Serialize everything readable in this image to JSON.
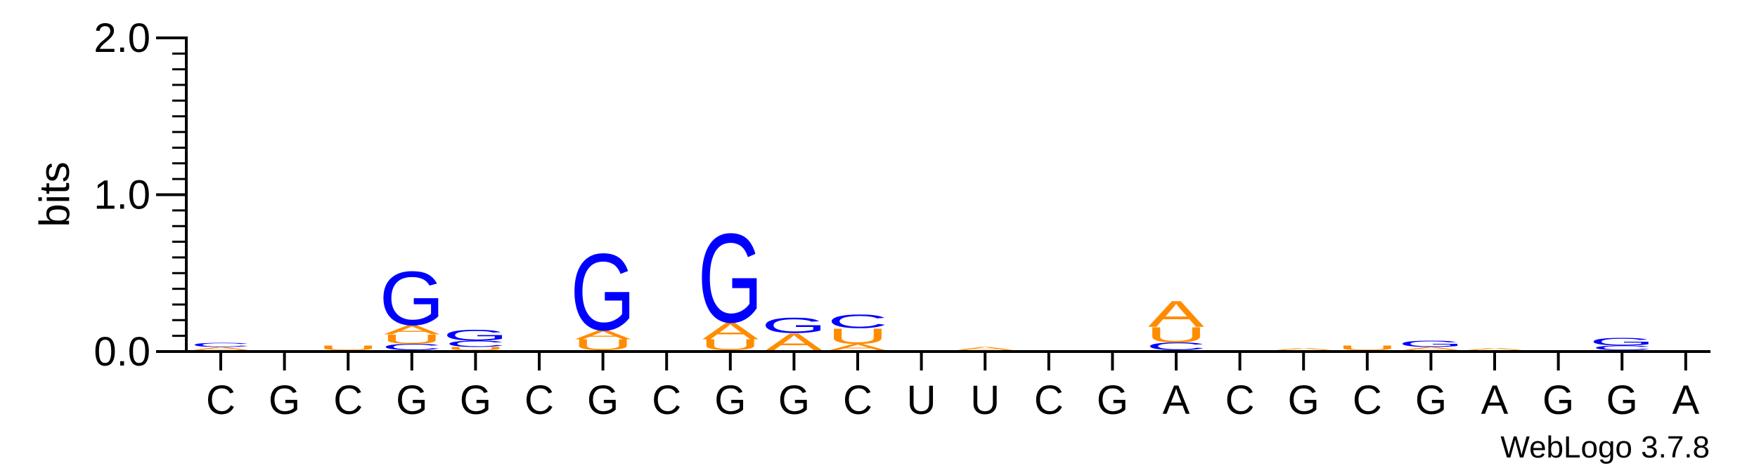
{
  "chart_data": {
    "type": "sequence-logo",
    "ylabel": "bits",
    "ylim": [
      0,
      2.0
    ],
    "yticks": [
      {
        "value": 0.0,
        "label": "0.0"
      },
      {
        "value": 1.0,
        "label": "1.0"
      },
      {
        "value": 2.0,
        "label": "2.0"
      }
    ],
    "colors": {
      "G": "#0000ff",
      "C": "#0000ff",
      "A": "#ff8c00",
      "U": "#ff8c00"
    },
    "positions": [
      {
        "label": "C",
        "letters": [
          {
            "l": "A",
            "v": 0.02
          },
          {
            "l": "C",
            "v": 0.025
          }
        ]
      },
      {
        "label": "G",
        "letters": []
      },
      {
        "label": "C",
        "letters": [
          {
            "l": "U",
            "v": 0.03
          }
        ]
      },
      {
        "label": "G",
        "letters": [
          {
            "l": "C",
            "v": 0.04
          },
          {
            "l": "U",
            "v": 0.06
          },
          {
            "l": "A",
            "v": 0.06
          },
          {
            "l": "G",
            "v": 0.35
          }
        ]
      },
      {
        "label": "G",
        "letters": [
          {
            "l": "U",
            "v": 0.02
          },
          {
            "l": "C",
            "v": 0.04
          },
          {
            "l": "G",
            "v": 0.07
          }
        ]
      },
      {
        "label": "C",
        "letters": []
      },
      {
        "label": "G",
        "letters": [
          {
            "l": "U",
            "v": 0.07
          },
          {
            "l": "A",
            "v": 0.06
          },
          {
            "l": "G",
            "v": 0.5
          }
        ]
      },
      {
        "label": "C",
        "letters": []
      },
      {
        "label": "G",
        "letters": [
          {
            "l": "U",
            "v": 0.07
          },
          {
            "l": "A",
            "v": 0.11
          },
          {
            "l": "G",
            "v": 0.58
          }
        ]
      },
      {
        "label": "G",
        "letters": [
          {
            "l": "A",
            "v": 0.11
          },
          {
            "l": "G",
            "v": 0.1
          }
        ]
      },
      {
        "label": "C",
        "letters": [
          {
            "l": "A",
            "v": 0.04
          },
          {
            "l": "U",
            "v": 0.1
          },
          {
            "l": "C",
            "v": 0.09
          }
        ]
      },
      {
        "label": "U",
        "letters": []
      },
      {
        "label": "U",
        "letters": [
          {
            "l": "A",
            "v": 0.02
          }
        ]
      },
      {
        "label": "C",
        "letters": []
      },
      {
        "label": "G",
        "letters": []
      },
      {
        "label": "A",
        "letters": [
          {
            "l": "C",
            "v": 0.05
          },
          {
            "l": "U",
            "v": 0.1
          },
          {
            "l": "A",
            "v": 0.17
          }
        ]
      },
      {
        "label": "C",
        "letters": []
      },
      {
        "label": "G",
        "letters": [
          {
            "l": "A",
            "v": 0.015
          }
        ]
      },
      {
        "label": "C",
        "letters": [
          {
            "l": "U",
            "v": 0.03
          }
        ]
      },
      {
        "label": "G",
        "letters": [
          {
            "l": "A",
            "v": 0.02
          },
          {
            "l": "G",
            "v": 0.04
          }
        ]
      },
      {
        "label": "A",
        "letters": [
          {
            "l": "A",
            "v": 0.015
          }
        ]
      },
      {
        "label": "G",
        "letters": []
      },
      {
        "label": "G",
        "letters": [
          {
            "l": "C",
            "v": 0.03
          },
          {
            "l": "G",
            "v": 0.05
          }
        ]
      },
      {
        "label": "A",
        "letters": []
      }
    ]
  },
  "credit": "WebLogo 3.7.8"
}
